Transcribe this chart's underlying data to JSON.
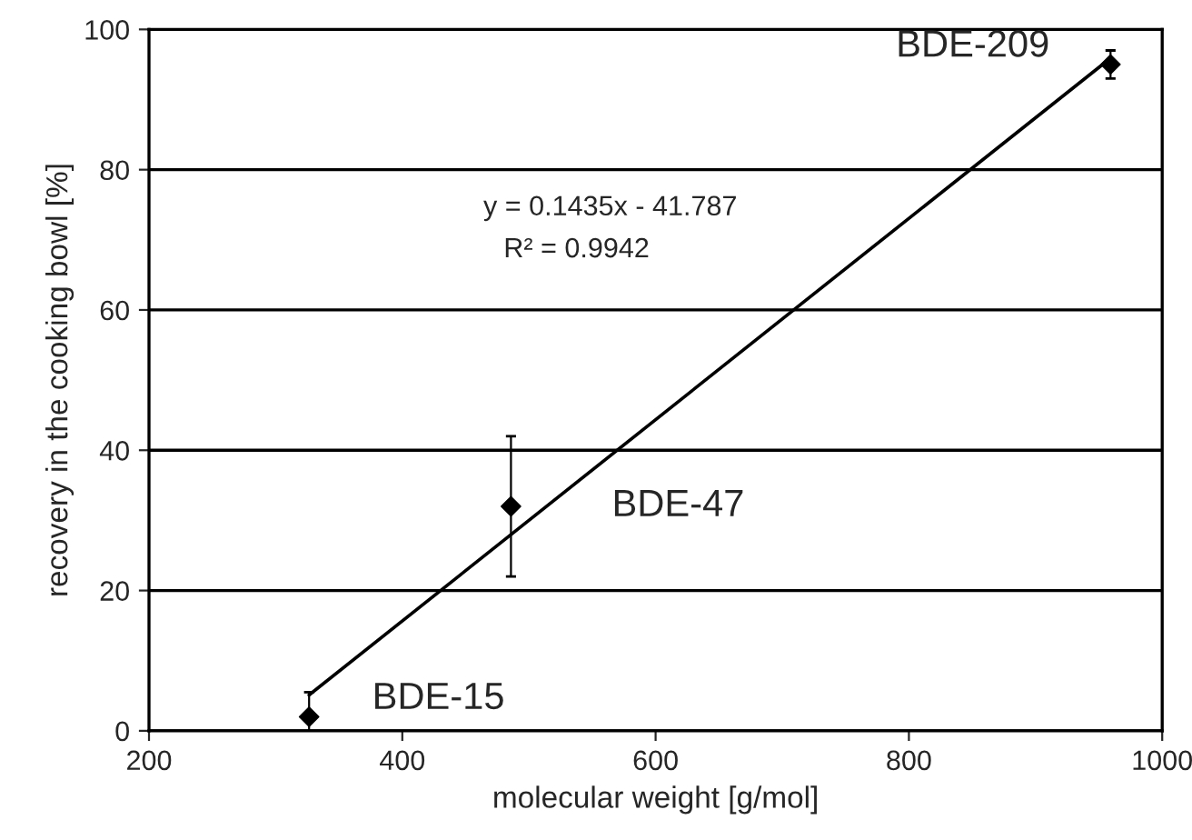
{
  "chart_data": {
    "type": "scatter",
    "xlabel": "molecular weight [g/mol]",
    "ylabel": "recovery in the cooking bowl [%]",
    "xlim": [
      200,
      1000
    ],
    "xticks": [
      200,
      400,
      600,
      800,
      1000
    ],
    "ylim": [
      0,
      100
    ],
    "yticks": [
      0,
      20,
      40,
      60,
      80,
      100
    ],
    "grid": "y",
    "marker": "diamond",
    "series": [
      {
        "color": "#000000",
        "x": [
          326.4,
          485.8,
          959.2
        ],
        "values": [
          2,
          32,
          95
        ],
        "errors": [
          3.5,
          10,
          2
        ]
      },
      {
        "type": "line",
        "color": "#000000",
        "x": [
          326.4,
          959.2
        ],
        "values": [
          5.1,
          95.9
        ],
        "line_style": "solid",
        "marker": "none"
      }
    ],
    "annotations": [
      {
        "text": "BDE-15",
        "x": 326.4,
        "y": 2
      },
      {
        "text": "BDE-47",
        "x": 485.8,
        "y": 32
      },
      {
        "text": "BDE-209",
        "x": 959.2,
        "y": 95
      },
      "y = 0.1435x - 41.787",
      "R² = 0.9942"
    ]
  }
}
